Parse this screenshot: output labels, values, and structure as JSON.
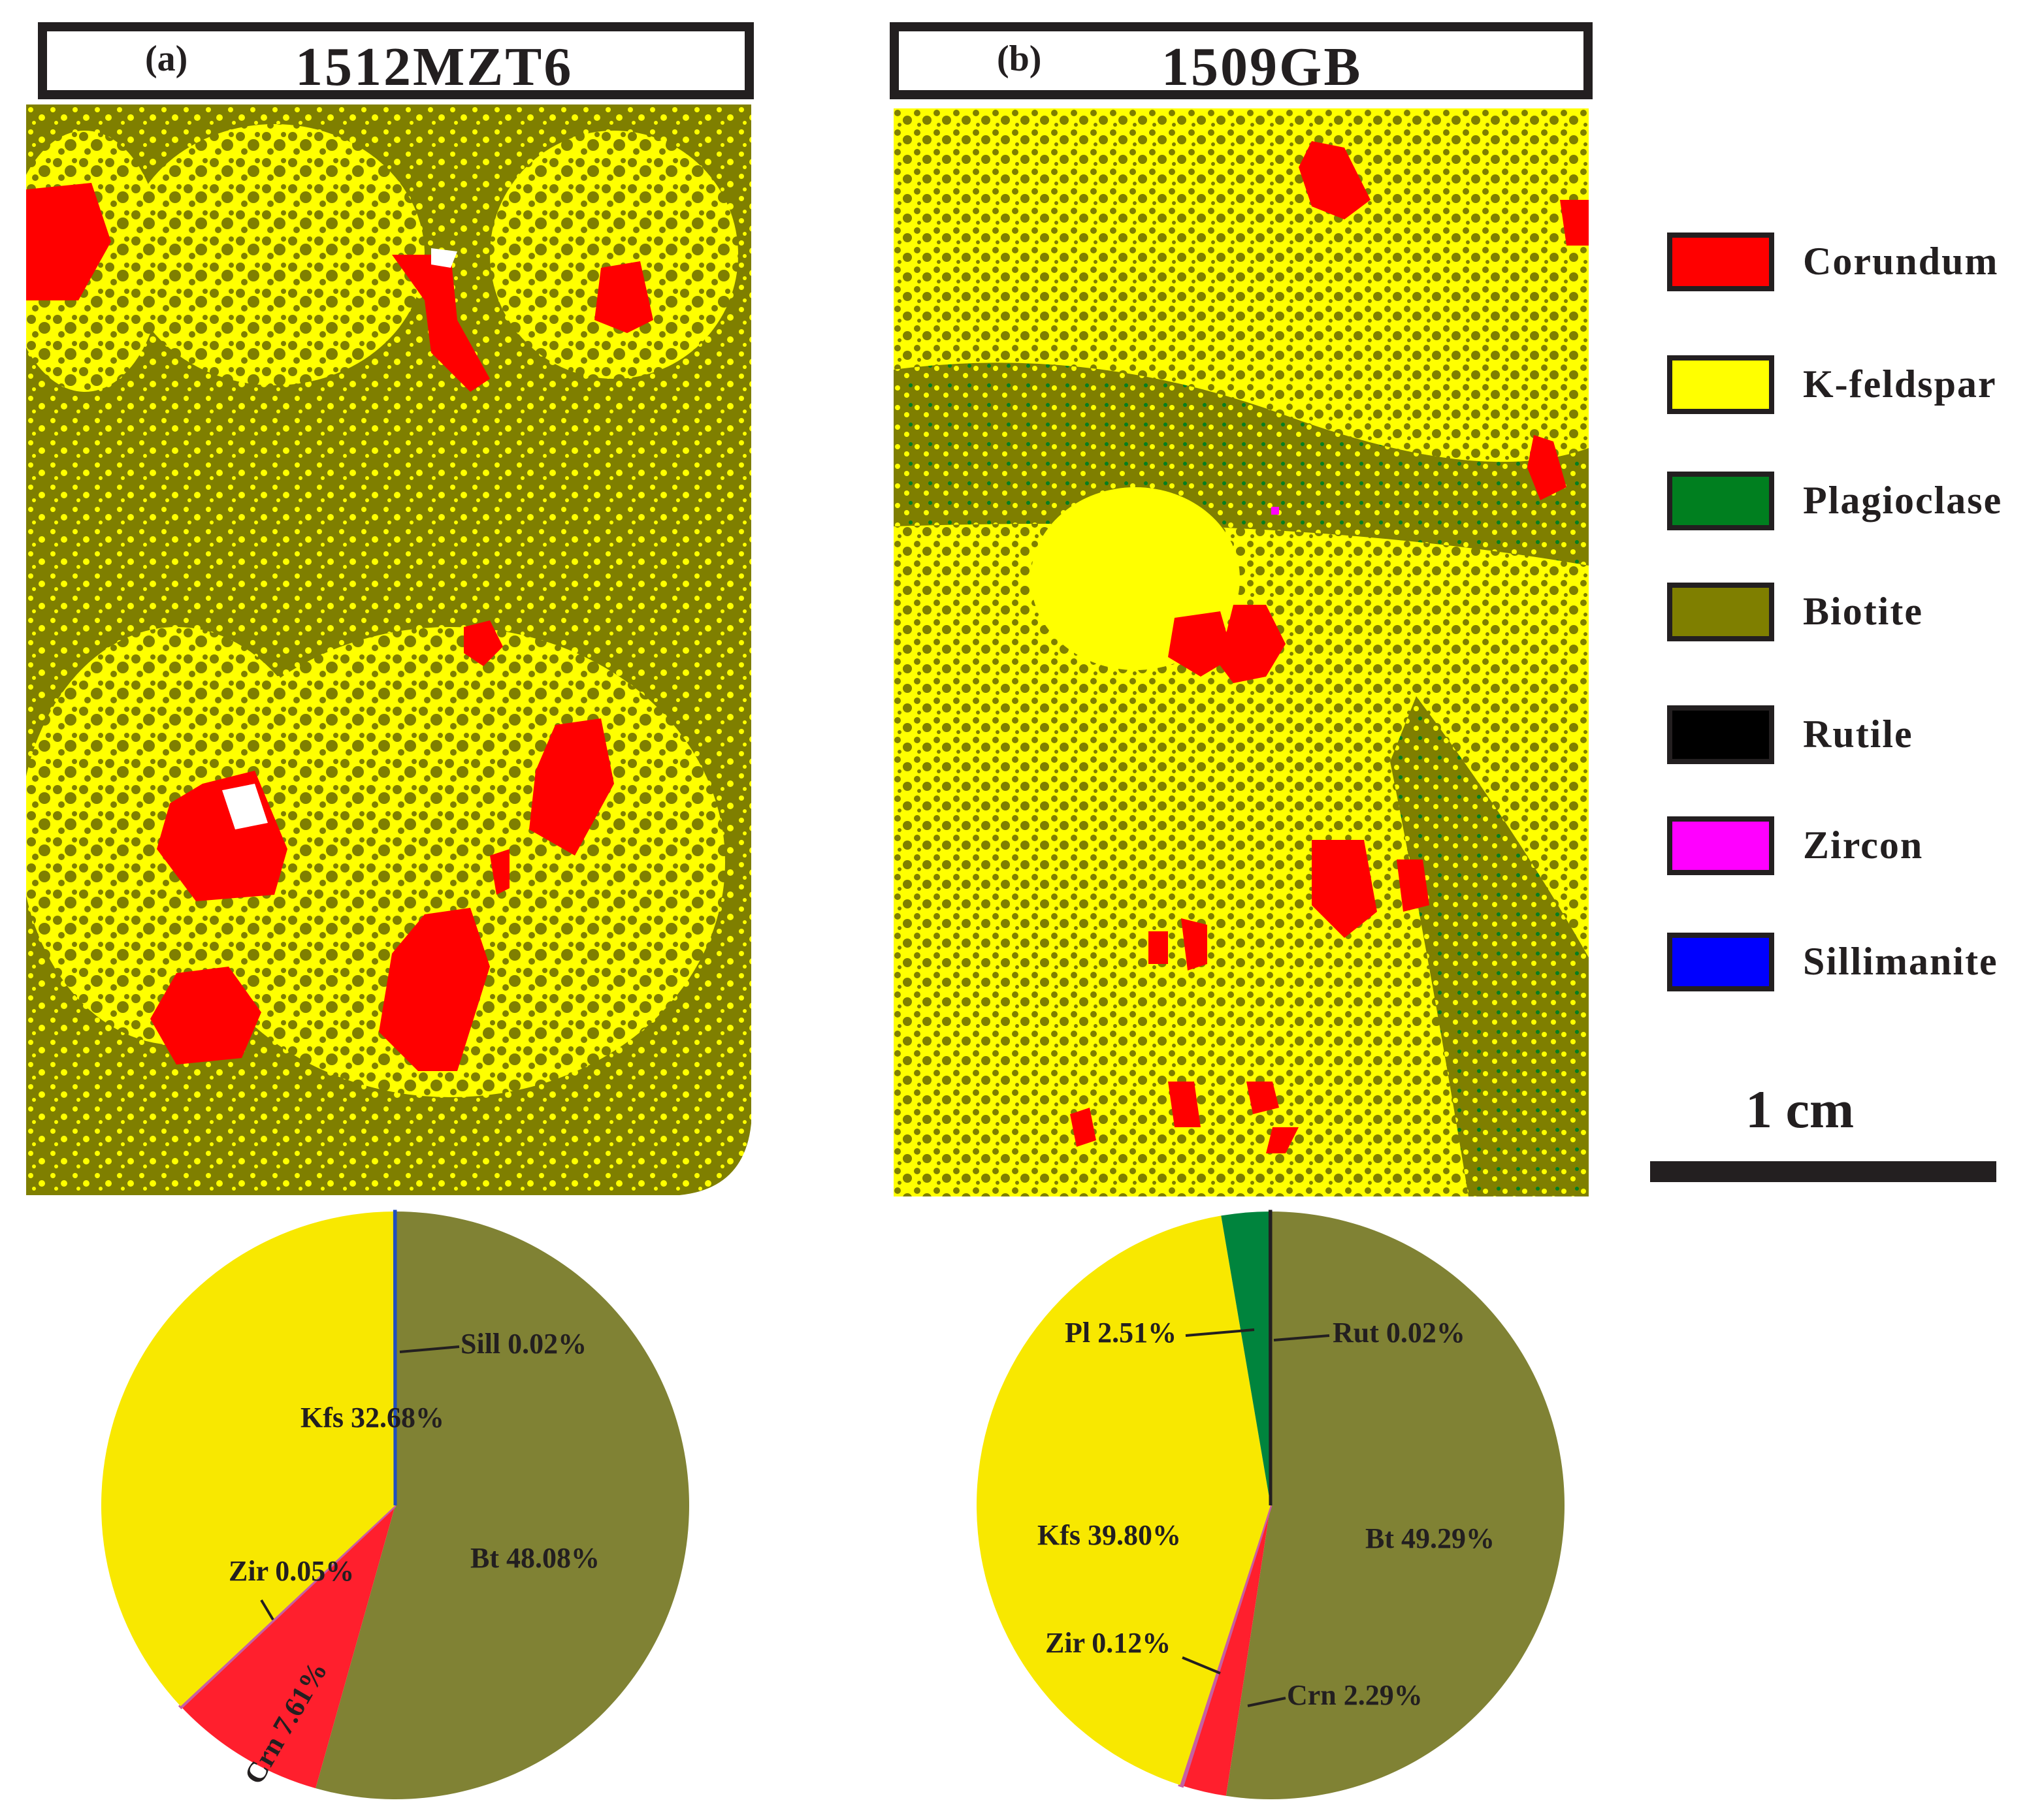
{
  "panels": [
    {
      "letter": "(a)",
      "sample": "1512MZT6"
    },
    {
      "letter": "(b)",
      "sample": "1509GB"
    }
  ],
  "legend": [
    {
      "label": "Corundum",
      "color": "#ff0000"
    },
    {
      "label": "K-feldspar",
      "color": "#ffff00"
    },
    {
      "label": "Plagioclase",
      "color": "#007f1f"
    },
    {
      "label": "Biotite",
      "color": "#7f7f00"
    },
    {
      "label": "Rutile",
      "color": "#000000"
    },
    {
      "label": "Zircon",
      "color": "#ff00ff"
    },
    {
      "label": "Sillimanite",
      "color": "#0000ff"
    }
  ],
  "scale": {
    "label": "1 cm"
  },
  "chart_data": [
    {
      "type": "pie",
      "sample": "1512MZT6",
      "start": "12 o'clock, clockwise",
      "slices": [
        {
          "name": "Bt",
          "value": 48.08,
          "label": "Bt 48.08%",
          "color": "#808234"
        },
        {
          "name": "Crn",
          "value": 7.61,
          "label": "Crn 7.61%",
          "color": "#ff1f2d"
        },
        {
          "name": "Zir",
          "value": 0.05,
          "label": "Zir 0.05%",
          "color": "#c65fa3"
        },
        {
          "name": "Kfs",
          "value": 32.68,
          "label": "Kfs 32.68%",
          "color": "#f8e800"
        },
        {
          "name": "Sill",
          "value": 0.02,
          "label": "Sill 0.02%",
          "color": "#1f4fbf"
        }
      ]
    },
    {
      "type": "pie",
      "sample": "1509GB",
      "start": "12 o'clock, clockwise",
      "slices": [
        {
          "name": "Bt",
          "value": 49.29,
          "label": "Bt 49.29%",
          "color": "#808234"
        },
        {
          "name": "Crn",
          "value": 2.29,
          "label": "Crn 2.29%",
          "color": "#ff1f2d"
        },
        {
          "name": "Zir",
          "value": 0.12,
          "label": "Zir 0.12%",
          "color": "#c65fa3"
        },
        {
          "name": "Kfs",
          "value": 39.8,
          "label": "Kfs 39.80%",
          "color": "#f8e800"
        },
        {
          "name": "Pl",
          "value": 2.51,
          "label": "Pl 2.51%",
          "color": "#00843d"
        },
        {
          "name": "Rut",
          "value": 0.02,
          "label": "Rut 0.02%",
          "color": "#231f20"
        }
      ]
    }
  ]
}
